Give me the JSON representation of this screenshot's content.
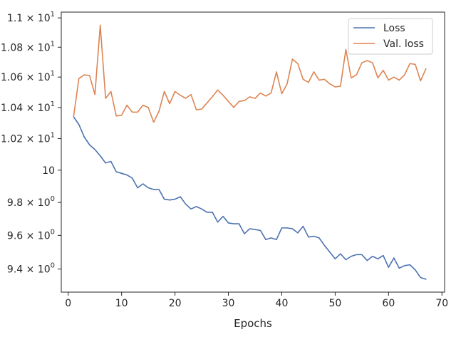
{
  "chart_data": {
    "type": "line",
    "title": "",
    "xlabel": "Epochs",
    "ylabel": "",
    "yscale": "log",
    "xlim": [
      -1.3,
      70.5
    ],
    "ylim": [
      9.265,
      11.04
    ],
    "grid": false,
    "legend_position": "top-right",
    "x_ticks": [
      0,
      10,
      20,
      30,
      40,
      50,
      60,
      70
    ],
    "x_tick_labels": [
      "0",
      "10",
      "20",
      "30",
      "40",
      "50",
      "60",
      "70"
    ],
    "y_ticks": [
      9.4,
      9.6,
      9.8,
      10.0,
      10.2,
      10.4,
      10.6,
      10.8,
      11.0
    ],
    "y_tick_labels": [
      {
        "mantissa": "9.4",
        "exp": "0"
      },
      {
        "mantissa": "9.6",
        "exp": "0"
      },
      {
        "mantissa": "9.8",
        "exp": "0"
      },
      {
        "mantissa": "10",
        "exp": ""
      },
      {
        "mantissa": "1.02",
        "exp": "1"
      },
      {
        "mantissa": "1.04",
        "exp": "1"
      },
      {
        "mantissa": "1.06",
        "exp": "1"
      },
      {
        "mantissa": "1.08",
        "exp": "1"
      },
      {
        "mantissa": "1.1",
        "exp": "1"
      }
    ],
    "times_sign": "×",
    "base": "10",
    "x": [
      1,
      2,
      3,
      4,
      5,
      6,
      7,
      8,
      9,
      10,
      11,
      12,
      13,
      14,
      15,
      16,
      17,
      18,
      19,
      20,
      21,
      22,
      23,
      24,
      25,
      26,
      27,
      28,
      29,
      30,
      31,
      32,
      33,
      34,
      35,
      36,
      37,
      38,
      39,
      40,
      41,
      42,
      43,
      44,
      45,
      46,
      47,
      48,
      49,
      50,
      51,
      52,
      53,
      54,
      55,
      56,
      57,
      58,
      59,
      60,
      61,
      62,
      63,
      64,
      65,
      66,
      67
    ],
    "series": [
      {
        "name": "Loss",
        "color": "#4c72b0",
        "values": [
          10.34,
          10.29,
          10.21,
          10.16,
          10.13,
          10.09,
          10.045,
          10.055,
          9.99,
          9.98,
          9.97,
          9.95,
          9.89,
          9.915,
          9.89,
          9.88,
          9.88,
          9.82,
          9.815,
          9.82,
          9.835,
          9.79,
          9.76,
          9.775,
          9.76,
          9.74,
          9.74,
          9.68,
          9.715,
          9.675,
          9.67,
          9.67,
          9.61,
          9.64,
          9.635,
          9.63,
          9.575,
          9.585,
          9.575,
          9.645,
          9.645,
          9.64,
          9.615,
          9.655,
          9.59,
          9.595,
          9.585,
          9.54,
          9.5,
          9.46,
          9.49,
          9.455,
          9.475,
          9.485,
          9.485,
          9.45,
          9.475,
          9.46,
          9.48,
          9.41,
          9.465,
          9.405,
          9.42,
          9.425,
          9.395,
          9.35,
          9.34
        ]
      },
      {
        "name": "Val. loss",
        "color": "#dd8452",
        "values": [
          10.34,
          10.59,
          10.615,
          10.61,
          10.485,
          10.95,
          10.46,
          10.505,
          10.345,
          10.35,
          10.415,
          10.37,
          10.37,
          10.415,
          10.4,
          10.305,
          10.375,
          10.505,
          10.425,
          10.505,
          10.48,
          10.46,
          10.485,
          10.385,
          10.39,
          10.43,
          10.47,
          10.515,
          10.48,
          10.44,
          10.4,
          10.44,
          10.445,
          10.47,
          10.46,
          10.495,
          10.475,
          10.495,
          10.635,
          10.49,
          10.555,
          10.72,
          10.69,
          10.585,
          10.565,
          10.635,
          10.58,
          10.585,
          10.555,
          10.535,
          10.54,
          10.785,
          10.595,
          10.615,
          10.695,
          10.71,
          10.695,
          10.595,
          10.645,
          10.58,
          10.6,
          10.58,
          10.615,
          10.69,
          10.685,
          10.575,
          10.655
        ]
      }
    ]
  }
}
